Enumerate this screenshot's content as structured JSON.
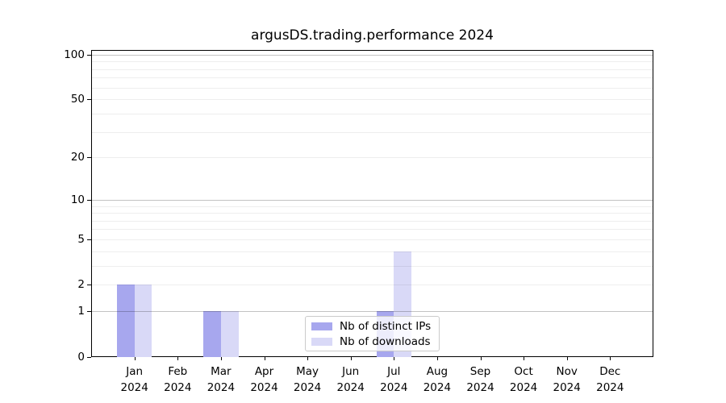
{
  "chart_data": {
    "type": "bar",
    "title": "argusDS.trading.performance 2024",
    "xlabel": "",
    "ylabel": "",
    "categories": [
      "Jan",
      "Feb",
      "Mar",
      "Apr",
      "May",
      "Jun",
      "Jul",
      "Aug",
      "Sep",
      "Oct",
      "Nov",
      "Dec"
    ],
    "year_label": "2024",
    "series": [
      {
        "name": "Nb of distinct IPs",
        "color": "#a7a7ee",
        "values": [
          2,
          0,
          1,
          0,
          0,
          0,
          1,
          0,
          0,
          0,
          0,
          0
        ]
      },
      {
        "name": "Nb of downloads",
        "color": "#d9d9f7",
        "values": [
          2,
          0,
          1,
          0,
          0,
          0,
          4,
          0,
          0,
          0,
          0,
          0
        ]
      }
    ],
    "yscale": "log10(1+x)",
    "ylim": [
      0,
      100
    ],
    "yticks": [
      0,
      1,
      2,
      5,
      10,
      20,
      50,
      100
    ],
    "grid": {
      "minor_values": [
        2,
        3,
        4,
        5,
        6,
        7,
        8,
        9,
        20,
        30,
        40,
        50,
        60,
        70,
        80,
        90
      ],
      "major_values": [
        1,
        10,
        100
      ]
    },
    "legend_position": "lower center",
    "background_color": "#ffffff",
    "axis_color": "#000000"
  }
}
